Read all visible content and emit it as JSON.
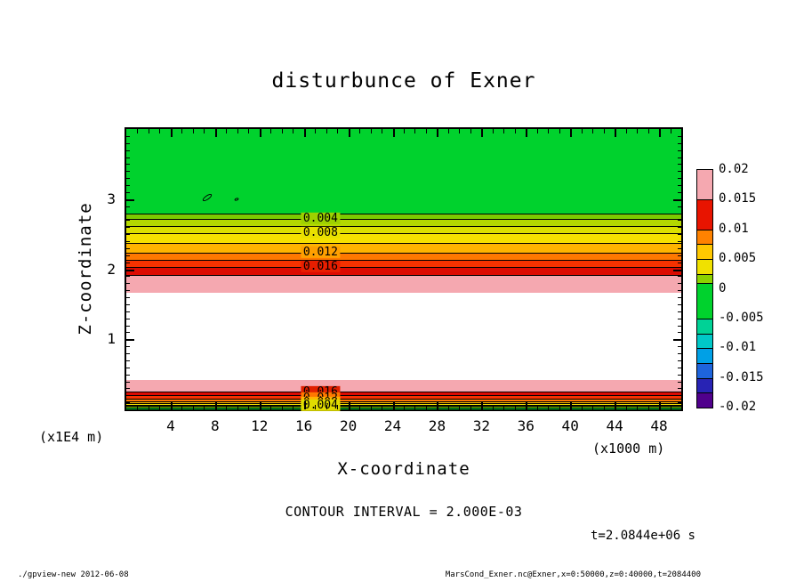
{
  "title": "disturbunce of Exner",
  "ylabel": "Z-coordinate",
  "xlabel": "X-coordinate",
  "y_units_label": "(x1E4 m)",
  "x_units_label": "(x1000 m)",
  "contour_interval_text": "CONTOUR INTERVAL = 2.000E-03",
  "time_text": "t=2.0844e+06 s",
  "footer": {
    "left": "./gpview-new  2012-06-08",
    "right": "MarsCond_Exner.nc@Exner,x=0:50000,z=0:40000,t=2084400"
  },
  "chart_data": {
    "type": "heatmap",
    "variant": "filled-contour",
    "title": "disturbunce of Exner",
    "xlabel": "X-coordinate",
    "ylabel": "Z-coordinate",
    "x_units": "(x1000 m)",
    "y_units": "(x1E4 m)",
    "x_range": [
      0,
      50
    ],
    "y_range": [
      0,
      4
    ],
    "contour_interval": 0.002,
    "x_minor_step": 1,
    "y_minor_step": 0.1,
    "x_major_ticks": [
      {
        "v": 4,
        "t": "4"
      },
      {
        "v": 8,
        "t": "8"
      },
      {
        "v": 12,
        "t": "12"
      },
      {
        "v": 16,
        "t": "16"
      },
      {
        "v": 20,
        "t": "20"
      },
      {
        "v": 24,
        "t": "24"
      },
      {
        "v": 28,
        "t": "28"
      },
      {
        "v": 32,
        "t": "32"
      },
      {
        "v": 36,
        "t": "36"
      },
      {
        "v": 40,
        "t": "40"
      },
      {
        "v": 44,
        "t": "44"
      },
      {
        "v": 48,
        "t": "48"
      }
    ],
    "y_major_ticks": [
      {
        "v": 1,
        "t": "1"
      },
      {
        "v": 2,
        "t": "2"
      },
      {
        "v": 3,
        "t": "3"
      }
    ],
    "bands": [
      {
        "z_top": 4.0,
        "z_bottom": 2.8,
        "color": "#00d22d"
      },
      {
        "z_top": 2.8,
        "z_bottom": 2.72,
        "color": "#7ccb00"
      },
      {
        "z_top": 2.72,
        "z_bottom": 2.62,
        "color": "#b4d800"
      },
      {
        "z_top": 2.62,
        "z_bottom": 2.51,
        "color": "#dce000"
      },
      {
        "z_top": 2.51,
        "z_bottom": 2.38,
        "color": "#f5e100"
      },
      {
        "z_top": 2.38,
        "z_bottom": 2.24,
        "color": "#ffb400"
      },
      {
        "z_top": 2.24,
        "z_bottom": 2.13,
        "color": "#ff7800"
      },
      {
        "z_top": 2.13,
        "z_bottom": 2.03,
        "color": "#f53200"
      },
      {
        "z_top": 2.03,
        "z_bottom": 1.92,
        "color": "#dc0a00"
      },
      {
        "z_top": 1.92,
        "z_bottom": 1.66,
        "color": "#f5a8b0"
      },
      {
        "z_top": 1.66,
        "z_bottom": 0.42,
        "color": "#ffffff"
      },
      {
        "z_top": 0.42,
        "z_bottom": 0.26,
        "color": "#f5a8b0"
      },
      {
        "z_top": 0.26,
        "z_bottom": 0.2,
        "color": "#dc0a00"
      },
      {
        "z_top": 0.2,
        "z_bottom": 0.15,
        "color": "#f53200"
      },
      {
        "z_top": 0.15,
        "z_bottom": 0.12,
        "color": "#ff7800"
      },
      {
        "z_top": 0.12,
        "z_bottom": 0.09,
        "color": "#ffb400"
      },
      {
        "z_top": 0.09,
        "z_bottom": 0.065,
        "color": "#f5e100"
      },
      {
        "z_top": 0.065,
        "z_bottom": 0.045,
        "color": "#dce000"
      },
      {
        "z_top": 0.045,
        "z_bottom": 0.03,
        "color": "#7ccb00"
      },
      {
        "z_top": 0.03,
        "z_bottom": 0.0,
        "color": "#00d22d"
      }
    ],
    "contour_lines": [
      {
        "z": 2.8
      },
      {
        "z": 2.72
      },
      {
        "z": 2.62
      },
      {
        "z": 2.51
      },
      {
        "z": 2.38
      },
      {
        "z": 2.24
      },
      {
        "z": 2.13
      },
      {
        "z": 2.03
      },
      {
        "z": 1.92
      },
      {
        "z": 0.26
      },
      {
        "z": 0.2
      },
      {
        "z": 0.15
      },
      {
        "z": 0.12
      },
      {
        "z": 0.09
      },
      {
        "z": 0.065
      },
      {
        "z": 0.045
      },
      {
        "z": 0.03
      }
    ],
    "contour_labels": [
      {
        "text": "0.004",
        "z": 2.72,
        "x": 17.5,
        "bg": "#9ed100"
      },
      {
        "text": "0.008",
        "z": 2.51,
        "x": 17.5,
        "bg": "#e9e000"
      },
      {
        "text": "0.012",
        "z": 2.24,
        "x": 17.5,
        "bg": "#ffa000"
      },
      {
        "text": "0.016",
        "z": 2.03,
        "x": 17.5,
        "bg": "#e81e00"
      },
      {
        "text": "0.016",
        "z": 0.245,
        "x": 17.5,
        "bg": "#e02000"
      },
      {
        "text": "0.012",
        "z": 0.155,
        "x": 17.5,
        "bg": "#ff7800"
      },
      {
        "text": "0.008",
        "z": 0.095,
        "x": 17.5,
        "bg": "#ffb400"
      },
      {
        "text": "0.004",
        "z": 0.05,
        "x": 17.5,
        "bg": "#e0dc00"
      }
    ],
    "squiggles": [
      {
        "x": 7.3,
        "z": 3.02,
        "w": 12,
        "h": 5,
        "rot": -35
      },
      {
        "x": 9.9,
        "z": 3.0,
        "w": 5,
        "h": 3,
        "rot": -20
      }
    ],
    "colorbar": {
      "v_top": 0.02,
      "v_bottom": -0.02,
      "segments": [
        {
          "v_top": 0.02,
          "v_bottom": 0.015,
          "color": "#f5a8b0"
        },
        {
          "v_top": 0.015,
          "v_bottom": 0.01,
          "color": "#e81400"
        },
        {
          "v_top": 0.01,
          "v_bottom": 0.0075,
          "color": "#ff8200"
        },
        {
          "v_top": 0.0075,
          "v_bottom": 0.005,
          "color": "#ffc800"
        },
        {
          "v_top": 0.005,
          "v_bottom": 0.0025,
          "color": "#f0e100"
        },
        {
          "v_top": 0.0025,
          "v_bottom": 0.001,
          "color": "#8cd200"
        },
        {
          "v_top": 0.001,
          "v_bottom": -0.005,
          "color": "#00d22d"
        },
        {
          "v_top": -0.005,
          "v_bottom": -0.0075,
          "color": "#00d296"
        },
        {
          "v_top": -0.0075,
          "v_bottom": -0.01,
          "color": "#00c8c8"
        },
        {
          "v_top": -0.01,
          "v_bottom": -0.0125,
          "color": "#00a0e6"
        },
        {
          "v_top": -0.0125,
          "v_bottom": -0.015,
          "color": "#1e64dc"
        },
        {
          "v_top": -0.015,
          "v_bottom": -0.0175,
          "color": "#2823b4"
        },
        {
          "v_top": -0.0175,
          "v_bottom": -0.02,
          "color": "#50008c"
        }
      ],
      "labels": [
        {
          "v": 0.02,
          "text": "0.02"
        },
        {
          "v": 0.015,
          "text": "0.015"
        },
        {
          "v": 0.01,
          "text": "0.01"
        },
        {
          "v": 0.005,
          "text": "0.005"
        },
        {
          "v": 0,
          "text": "0"
        },
        {
          "v": -0.005,
          "text": "-0.005"
        },
        {
          "v": -0.01,
          "text": "-0.01"
        },
        {
          "v": -0.015,
          "text": "-0.015"
        },
        {
          "v": -0.02,
          "text": "-0.02"
        }
      ]
    }
  }
}
